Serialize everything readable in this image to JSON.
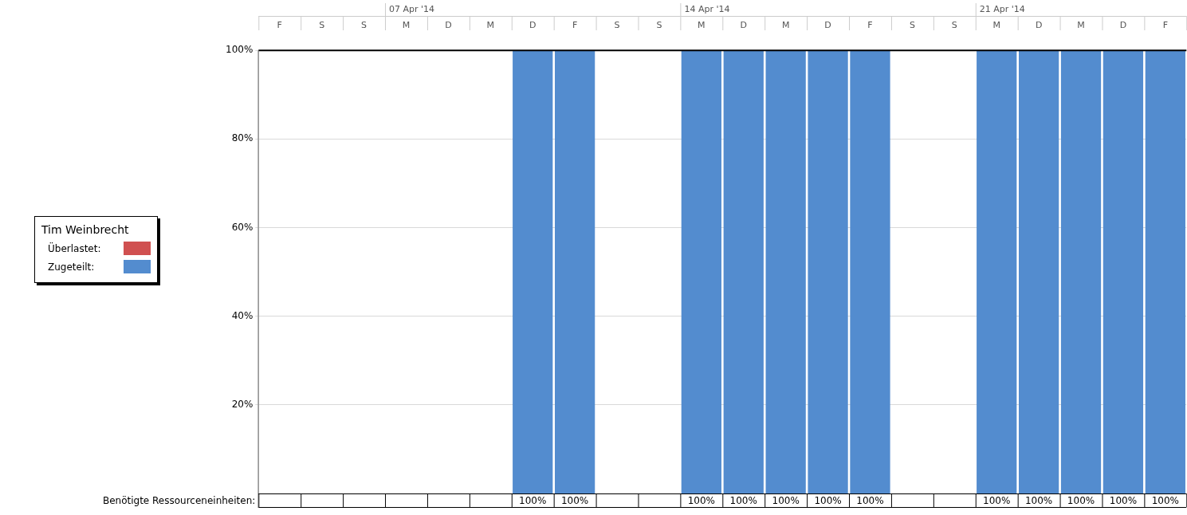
{
  "chart_data": {
    "type": "bar",
    "stacked": true,
    "legend_title": "Tim Weinbrecht",
    "legend": "left",
    "categories": [
      "F",
      "S",
      "S",
      "M",
      "D",
      "M",
      "D",
      "F",
      "S",
      "S",
      "M",
      "D",
      "M",
      "D",
      "F",
      "S",
      "S",
      "M",
      "D",
      "M",
      "D",
      "F"
    ],
    "series": [
      {
        "name": "Zugeteilt:",
        "color": "#538ccf",
        "values": [
          0,
          0,
          0,
          0,
          0,
          0,
          100,
          100,
          0,
          0,
          100,
          100,
          100,
          100,
          100,
          0,
          0,
          100,
          100,
          100,
          100,
          100
        ],
        "value_labels": [
          null,
          null,
          null,
          null,
          null,
          null,
          "100%",
          "100%",
          null,
          null,
          "100%",
          "100%",
          "100%",
          "100%",
          "100%",
          null,
          null,
          "100%",
          "100%",
          "100%",
          "100%",
          "100%"
        ]
      },
      {
        "name": "Überlastet:",
        "color": "#d05050",
        "values": [
          0,
          0,
          0,
          0,
          0,
          0,
          0,
          0,
          0,
          0,
          0,
          0,
          0,
          0,
          0,
          0,
          0,
          0,
          0,
          0,
          0,
          0
        ]
      }
    ],
    "ylim": [
      0,
      100
    ],
    "yticks": [
      {
        "value": 20,
        "label": "20%"
      },
      {
        "value": 40,
        "label": "40%"
      },
      {
        "value": 60,
        "label": "60%"
      },
      {
        "value": 80,
        "label": "80%"
      },
      {
        "value": 100,
        "label": "100%"
      }
    ],
    "grid": "y",
    "annotations": [
      "07 Apr '14",
      "14 Apr '14",
      "21 Apr '14",
      "Benötigte Ressourceneinheiten:"
    ]
  }
}
